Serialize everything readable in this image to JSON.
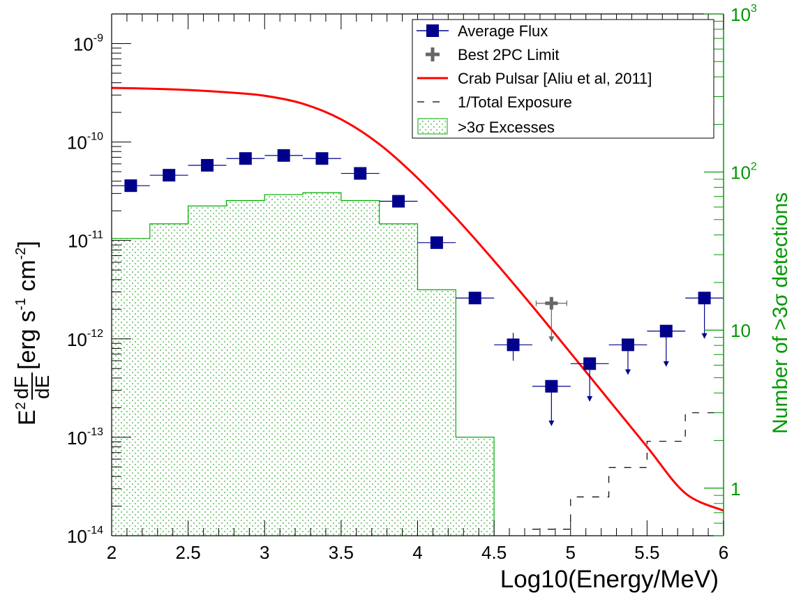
{
  "chart_data": {
    "type": "scatter",
    "xlabel": "Log10(Energy/MeV)",
    "ylabel_left": {
      "base": "E",
      "sup": "2",
      "frac_num": "dF",
      "frac_den": "dE",
      "units": "[erg s",
      "units_sup1": "-1",
      "units_mid": " cm",
      "units_sup2": "-2",
      "units_end": "]"
    },
    "ylabel_right": "Number of >3σ detections",
    "xlim": [
      2,
      6
    ],
    "ylim": [
      1e-14,
      2e-09
    ],
    "y2lim": [
      0.5,
      1000
    ],
    "x_ticks": [
      "2",
      "2.5",
      "3",
      "3.5",
      "4",
      "4.5",
      "5",
      "5.5",
      "6"
    ],
    "y_ticks": [
      {
        "base": "10",
        "exp": "-14",
        "value": 1e-14
      },
      {
        "base": "10",
        "exp": "-13",
        "value": 1e-13
      },
      {
        "base": "10",
        "exp": "-12",
        "value": 1e-12
      },
      {
        "base": "10",
        "exp": "-11",
        "value": 1e-11
      },
      {
        "base": "10",
        "exp": "-10",
        "value": 1e-10
      },
      {
        "base": "10",
        "exp": "-9",
        "value": 1e-09
      }
    ],
    "y2_ticks": [
      {
        "label": "1",
        "value": 1
      },
      {
        "label": "10",
        "value": 10
      },
      {
        "label": "10",
        "exp": "2",
        "value": 100
      },
      {
        "label": "10",
        "exp": "3",
        "value": 1000
      }
    ],
    "legend": {
      "placement": "top-right",
      "entries": [
        {
          "label": "Average Flux"
        },
        {
          "label": "Best 2PC Limit"
        },
        {
          "label": "Crab Pulsar [Aliu et al, 2011]"
        },
        {
          "label": "1/Total Exposure"
        },
        {
          "label": ">3σ Excesses"
        }
      ]
    },
    "series": [
      {
        "name": "Average Flux",
        "kind": "points",
        "color": "#00008b",
        "bin_halfwidth": 0.125,
        "points": [
          {
            "x": 2.125,
            "y": 3.6e-11
          },
          {
            "x": 2.375,
            "y": 4.6e-11
          },
          {
            "x": 2.625,
            "y": 5.8e-11
          },
          {
            "x": 2.875,
            "y": 6.8e-11
          },
          {
            "x": 3.125,
            "y": 7.3e-11
          },
          {
            "x": 3.375,
            "y": 6.8e-11
          },
          {
            "x": 3.625,
            "y": 4.8e-11
          },
          {
            "x": 3.875,
            "y": 2.5e-11
          },
          {
            "x": 4.125,
            "y": 9.5e-12
          },
          {
            "x": 4.375,
            "y": 2.6e-12
          },
          {
            "x": 4.625,
            "y": 8.7e-13,
            "err_lo": 6e-13,
            "err_hi": 1.15e-12
          },
          {
            "x": 4.875,
            "y": 3.3e-13,
            "upper_limit": true,
            "arrow_to": 1.3e-13
          },
          {
            "x": 5.125,
            "y": 5.6e-13,
            "upper_limit": true,
            "arrow_to": 2.3e-13
          },
          {
            "x": 5.375,
            "y": 8.7e-13,
            "upper_limit": true,
            "arrow_to": 4.3e-13
          },
          {
            "x": 5.625,
            "y": 1.2e-12,
            "upper_limit": true,
            "arrow_to": 5.2e-13
          },
          {
            "x": 5.875,
            "y": 2.6e-12,
            "upper_limit": true,
            "arrow_to": 1e-12
          }
        ]
      },
      {
        "name": "Best 2PC Limit",
        "kind": "points",
        "color": "#666666",
        "points": [
          {
            "x": 4.875,
            "y": 2.3e-12,
            "xerr": 0.1,
            "upper_limit": true,
            "arrow_to": 9.3e-13
          }
        ]
      },
      {
        "name": "Crab Pulsar [Aliu et al, 2011]",
        "kind": "line",
        "color": "#ff0000",
        "x": [
          2.0,
          2.25,
          2.5,
          2.75,
          3.0,
          3.25,
          3.5,
          3.75,
          4.0,
          4.25,
          4.5,
          4.75,
          5.0,
          5.25,
          5.5,
          5.75,
          6.0
        ],
        "y": [
          3.55e-10,
          3.48e-10,
          3.38e-10,
          3.2e-10,
          2.95e-10,
          2.45e-10,
          1.7e-10,
          9.5e-11,
          4.3e-11,
          1.7e-11,
          6.2e-12,
          2.15e-12,
          7.2e-13,
          2.4e-13,
          8e-14,
          2.7e-14,
          1.8e-14
        ]
      },
      {
        "name": "1/Total Exposure",
        "kind": "step",
        "color": "#000000",
        "axis": "right",
        "bins": [
          {
            "x0": 4.75,
            "x1": 5.0,
            "y": 0.55
          },
          {
            "x0": 5.0,
            "x1": 5.25,
            "y": 0.88
          },
          {
            "x0": 5.25,
            "x1": 5.5,
            "y": 1.35
          },
          {
            "x0": 5.5,
            "x1": 5.75,
            "y": 1.98
          },
          {
            "x0": 5.75,
            "x1": 6.0,
            "y": 3.0
          }
        ]
      },
      {
        "name": ">3σ Excesses",
        "kind": "histogram",
        "color": "#00aa00",
        "axis": "right",
        "bins": [
          {
            "x0": 2.0,
            "x1": 2.25,
            "y": 38
          },
          {
            "x0": 2.25,
            "x1": 2.5,
            "y": 47
          },
          {
            "x0": 2.5,
            "x1": 2.75,
            "y": 61
          },
          {
            "x0": 2.75,
            "x1": 3.0,
            "y": 66
          },
          {
            "x0": 3.0,
            "x1": 3.25,
            "y": 72
          },
          {
            "x0": 3.25,
            "x1": 3.5,
            "y": 74
          },
          {
            "x0": 3.5,
            "x1": 3.75,
            "y": 66
          },
          {
            "x0": 3.75,
            "x1": 4.0,
            "y": 47
          },
          {
            "x0": 4.0,
            "x1": 4.25,
            "y": 18
          },
          {
            "x0": 4.25,
            "x1": 4.5,
            "y": 2.1
          }
        ]
      }
    ]
  }
}
